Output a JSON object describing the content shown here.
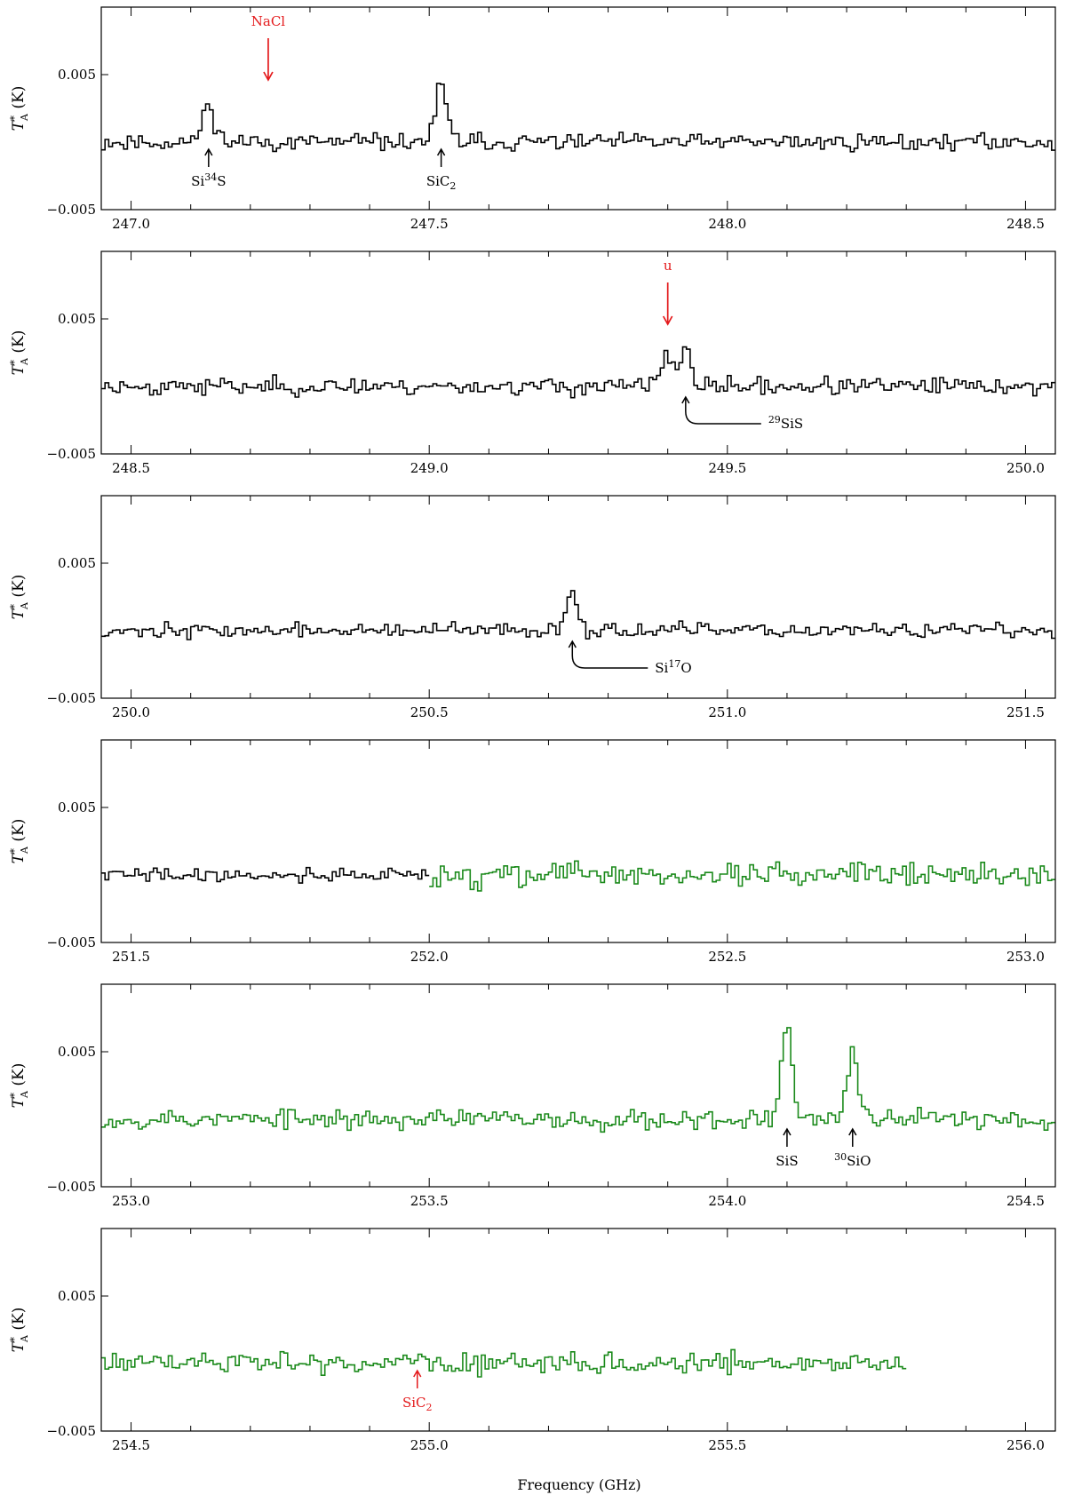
{
  "xlabel": "Frequency (GHz)",
  "colors": {
    "primary": "#000000",
    "secondary": "#1b8a1b",
    "marker": "#e41a1c"
  },
  "chart_data": [
    {
      "type": "line",
      "style": "steps",
      "xlim": [
        246.95,
        248.55
      ],
      "ylim": [
        -0.005,
        0.01
      ],
      "xticks": [
        247.0,
        247.5,
        248.0,
        248.5
      ],
      "xtick_labels": [
        "247.0",
        "247.5",
        "248.0",
        "248.5"
      ],
      "yticks": [
        0.005,
        -0.005
      ],
      "ytick_labels": [
        "0.005",
        "−0.005"
      ],
      "ylabel": "T*A (K)",
      "series": [
        {
          "color_key": "primary",
          "x_range": [
            246.95,
            248.55
          ],
          "seed": 11,
          "noise": 0.0006,
          "peaks": [
            {
              "x": 247.13,
              "a": 0.0028,
              "w": 0.01
            },
            {
              "x": 247.52,
              "a": 0.004,
              "w": 0.01
            }
          ]
        }
      ],
      "markers": [
        {
          "label": "Si34S",
          "x": 247.13,
          "direction": "up",
          "color_key": "primary"
        },
        {
          "label": "SiC2",
          "x": 247.52,
          "direction": "up",
          "color_key": "primary"
        },
        {
          "label": "NaCl",
          "x": 247.23,
          "direction": "down",
          "color_key": "marker"
        }
      ]
    },
    {
      "type": "line",
      "style": "steps",
      "xlim": [
        248.45,
        250.05
      ],
      "ylim": [
        -0.005,
        0.01
      ],
      "xticks": [
        248.5,
        249.0,
        249.5,
        250.0
      ],
      "xtick_labels": [
        "248.5",
        "249.0",
        "249.5",
        "250.0"
      ],
      "yticks": [
        0.005,
        -0.005
      ],
      "ytick_labels": [
        "0.005",
        "−0.005"
      ],
      "ylabel": "T*A (K)",
      "series": [
        {
          "color_key": "primary",
          "x_range": [
            248.45,
            250.05
          ],
          "seed": 23,
          "noise": 0.0006,
          "peaks": [
            {
              "x": 249.4,
              "a": 0.002,
              "w": 0.012
            },
            {
              "x": 249.43,
              "a": 0.003,
              "w": 0.008
            }
          ]
        }
      ],
      "markers": [
        {
          "label": "u",
          "x": 249.4,
          "direction": "down",
          "color_key": "marker"
        },
        {
          "label": "29SiS",
          "x": 249.43,
          "direction": "hook",
          "color_key": "primary"
        }
      ]
    },
    {
      "type": "line",
      "style": "steps",
      "xlim": [
        249.95,
        251.55
      ],
      "ylim": [
        -0.005,
        0.01
      ],
      "xticks": [
        250.0,
        250.5,
        251.0,
        251.5
      ],
      "xtick_labels": [
        "250.0",
        "250.5",
        "251.0",
        "251.5"
      ],
      "yticks": [
        0.005,
        -0.005
      ],
      "ytick_labels": [
        "0.005",
        "−0.005"
      ],
      "ylabel": "T*A (K)",
      "series": [
        {
          "color_key": "primary",
          "x_range": [
            249.95,
            251.55
          ],
          "seed": 37,
          "noise": 0.0005,
          "peaks": [
            {
              "x": 250.74,
              "a": 0.003,
              "w": 0.01
            }
          ]
        }
      ],
      "markers": [
        {
          "label": "Si17O",
          "x": 250.74,
          "direction": "hook",
          "color_key": "primary"
        }
      ]
    },
    {
      "type": "line",
      "style": "steps",
      "xlim": [
        251.45,
        253.05
      ],
      "ylim": [
        -0.005,
        0.01
      ],
      "xticks": [
        251.5,
        252.0,
        252.5,
        253.0
      ],
      "xtick_labels": [
        "251.5",
        "252.0",
        "252.5",
        "253.0"
      ],
      "yticks": [
        0.005,
        -0.005
      ],
      "ytick_labels": [
        "0.005",
        "−0.005"
      ],
      "ylabel": "T*A (K)",
      "series": [
        {
          "color_key": "primary",
          "x_range": [
            251.45,
            252.0
          ],
          "seed": 41,
          "noise": 0.0005,
          "peaks": []
        },
        {
          "color_key": "secondary",
          "x_range": [
            252.0,
            253.05
          ],
          "seed": 43,
          "noise": 0.0009,
          "peaks": []
        }
      ],
      "markers": []
    },
    {
      "type": "line",
      "style": "steps",
      "xlim": [
        252.95,
        254.55
      ],
      "ylim": [
        -0.005,
        0.01
      ],
      "xticks": [
        253.0,
        253.5,
        254.0,
        254.5
      ],
      "xtick_labels": [
        "253.0",
        "253.5",
        "254.0",
        "254.5"
      ],
      "yticks": [
        0.005,
        -0.005
      ],
      "ytick_labels": [
        "0.005",
        "−0.005"
      ],
      "ylabel": "T*A (K)",
      "series": [
        {
          "color_key": "secondary",
          "x_range": [
            252.95,
            254.55
          ],
          "seed": 53,
          "noise": 0.0007,
          "peaks": [
            {
              "x": 254.1,
              "a": 0.007,
              "w": 0.009
            },
            {
              "x": 254.21,
              "a": 0.005,
              "w": 0.009
            }
          ]
        }
      ],
      "markers": [
        {
          "label": "SiS",
          "x": 254.1,
          "direction": "up",
          "color_key": "primary"
        },
        {
          "label": "30SiO",
          "x": 254.21,
          "direction": "up",
          "color_key": "primary"
        }
      ]
    },
    {
      "type": "line",
      "style": "steps",
      "xlim": [
        254.45,
        256.05
      ],
      "ylim": [
        -0.005,
        0.01
      ],
      "xticks": [
        254.5,
        255.0,
        255.5,
        256.0
      ],
      "xtick_labels": [
        "254.5",
        "255.0",
        "255.5",
        "256.0"
      ],
      "yticks": [
        0.005,
        -0.005
      ],
      "ytick_labels": [
        "0.005",
        "−0.005"
      ],
      "ylabel": "T*A (K)",
      "series": [
        {
          "color_key": "secondary",
          "x_range": [
            254.45,
            255.8
          ],
          "seed": 61,
          "noise": 0.0008,
          "peaks": []
        }
      ],
      "markers": [
        {
          "label": "SiC2",
          "x": 254.98,
          "direction": "up",
          "color_key": "marker"
        }
      ]
    }
  ]
}
